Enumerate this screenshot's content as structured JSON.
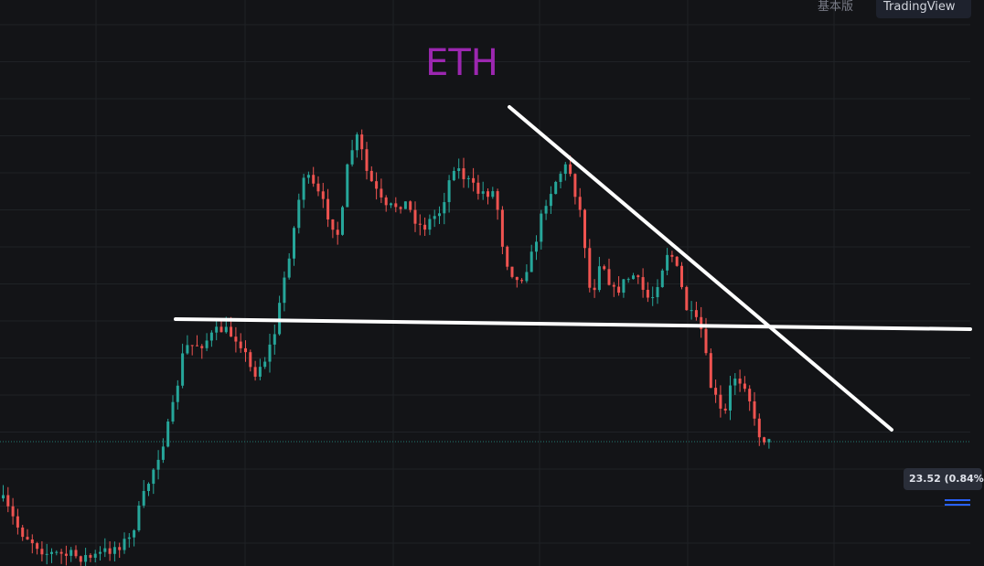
{
  "toolbar": {
    "basic": "基本版",
    "tradingview": "TradingView"
  },
  "chart": {
    "title": "ETH",
    "price_label": "23.52 (0.84%"
  }
}
